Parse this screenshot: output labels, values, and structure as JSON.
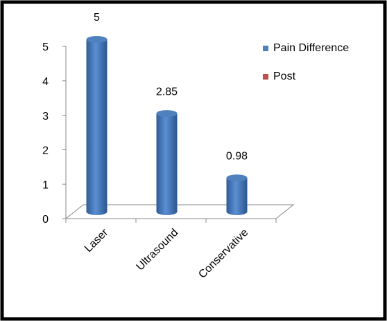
{
  "chart_data": {
    "type": "bar3d",
    "categories": [
      "Laser",
      "Ultrasound",
      "Conservative"
    ],
    "series": [
      {
        "name": "Pain Difference",
        "color": "#4f81bd",
        "values": [
          5,
          2.85,
          0.98
        ]
      },
      {
        "name": "Post",
        "color": "#c0504d",
        "values": [
          null,
          null,
          null
        ]
      }
    ],
    "ylim": [
      0,
      5
    ],
    "yticks": [
      0,
      1,
      2,
      3,
      4,
      5
    ],
    "legend": "right"
  }
}
